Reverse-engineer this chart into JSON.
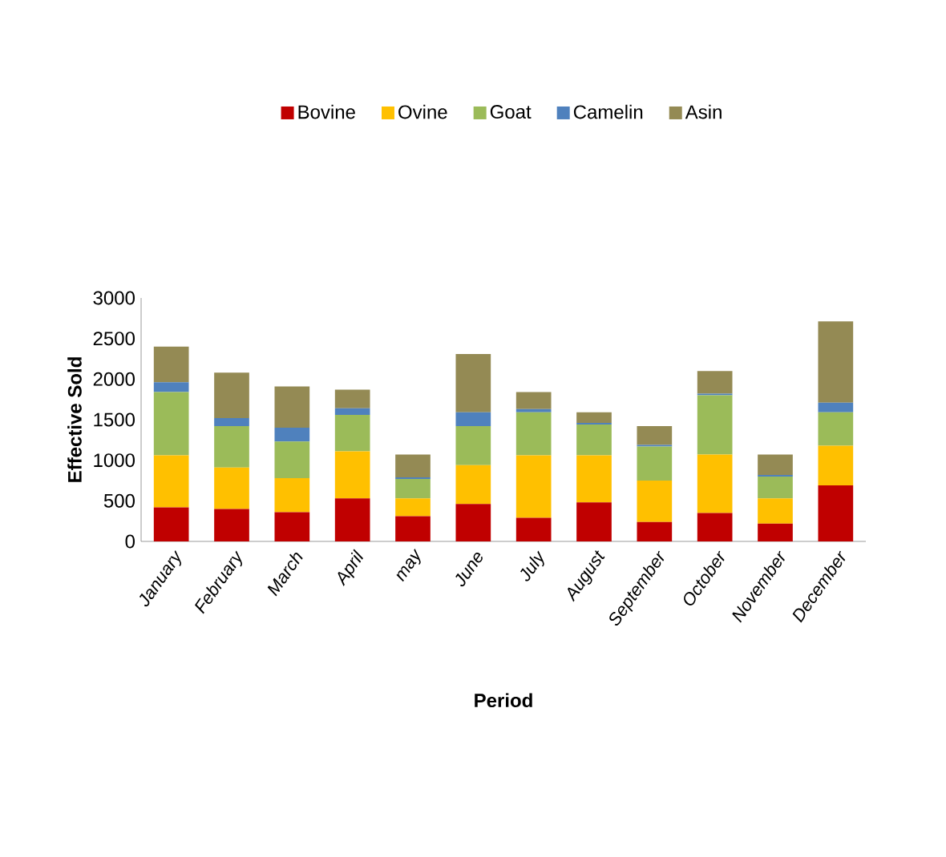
{
  "chart_data": {
    "type": "bar",
    "stacked": true,
    "xlabel": "Period",
    "ylabel": "Effective Sold",
    "categories": [
      "January",
      "February",
      "March",
      "April",
      "may",
      "June",
      "July",
      "August",
      "September",
      "October",
      "November",
      "December"
    ],
    "series": [
      {
        "name": "Bovine",
        "color": "#c00000",
        "values": [
          420,
          400,
          360,
          530,
          310,
          460,
          290,
          480,
          240,
          350,
          220,
          690
        ]
      },
      {
        "name": "Ovine",
        "color": "#ffc000",
        "values": [
          640,
          510,
          420,
          580,
          220,
          480,
          770,
          580,
          510,
          720,
          310,
          490
        ]
      },
      {
        "name": "Goat",
        "color": "#9bbb59",
        "values": [
          780,
          510,
          450,
          450,
          240,
          480,
          530,
          380,
          420,
          730,
          270,
          410
        ]
      },
      {
        "name": "Camelin",
        "color": "#4f81bd",
        "values": [
          120,
          100,
          170,
          80,
          20,
          170,
          40,
          20,
          20,
          20,
          20,
          120
        ]
      },
      {
        "name": "Asin",
        "color": "#948a54",
        "values": [
          440,
          560,
          510,
          230,
          280,
          720,
          210,
          130,
          230,
          280,
          250,
          1000
        ]
      }
    ],
    "ylim": [
      0,
      3000
    ],
    "yticks": [
      0,
      500,
      1000,
      1500,
      2000,
      2500,
      3000
    ],
    "grid": false,
    "legend": "top"
  }
}
